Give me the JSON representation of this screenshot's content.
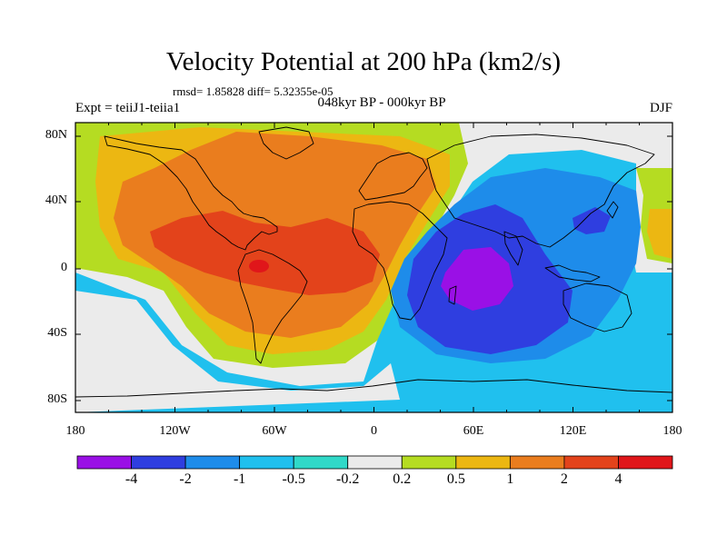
{
  "figure": {
    "title": "Velocity Potential at 200 hPa (km2/s)",
    "stats": "rmsd= 1.85828 diff= 5.32355e-05",
    "left_label": "Expt = teiiJ1-teiia1",
    "center_label": "048kyr BP - 000kyr BP",
    "right_label": "DJF"
  },
  "axes": {
    "y_ticks": [
      {
        "lat": 80,
        "label": "80N"
      },
      {
        "lat": 40,
        "label": "40N"
      },
      {
        "lat": 0,
        "label": "0"
      },
      {
        "lat": -40,
        "label": "40S"
      },
      {
        "lat": -80,
        "label": "80S"
      }
    ],
    "x_ticks": [
      {
        "lon": -180,
        "label": "180"
      },
      {
        "lon": -120,
        "label": "120W"
      },
      {
        "lon": -60,
        "label": "60W"
      },
      {
        "lon": 0,
        "label": "0"
      },
      {
        "lon": 60,
        "label": "60E"
      },
      {
        "lon": 120,
        "label": "120E"
      },
      {
        "lon": 180,
        "label": "180"
      }
    ]
  },
  "colorbar": {
    "labels": [
      "-4",
      "-2",
      "-1",
      "-0.5",
      "-0.2",
      "0.2",
      "0.5",
      "1",
      "2",
      "4"
    ],
    "colors": [
      "#9a10e6",
      "#2f3ee0",
      "#1e8cea",
      "#20c0ee",
      "#30d9c8",
      "#ebebeb",
      "#b5dc22",
      "#ecb712",
      "#ea7d1e",
      "#e3431b",
      "#e0161a"
    ]
  },
  "map": {
    "colors": {
      "ocean_default": "#20c0ee",
      "deep_blue": "#2f3ee0",
      "mid_blue": "#1e8cea",
      "violet": "#9a10e6",
      "cyan_green": "#30d9c8",
      "white_zone": "#ebebeb",
      "yellow_green": "#b5dc22",
      "yellow": "#ecb712",
      "orange": "#ea7d1e",
      "red_orange": "#e3431b",
      "red": "#e0161a"
    }
  }
}
